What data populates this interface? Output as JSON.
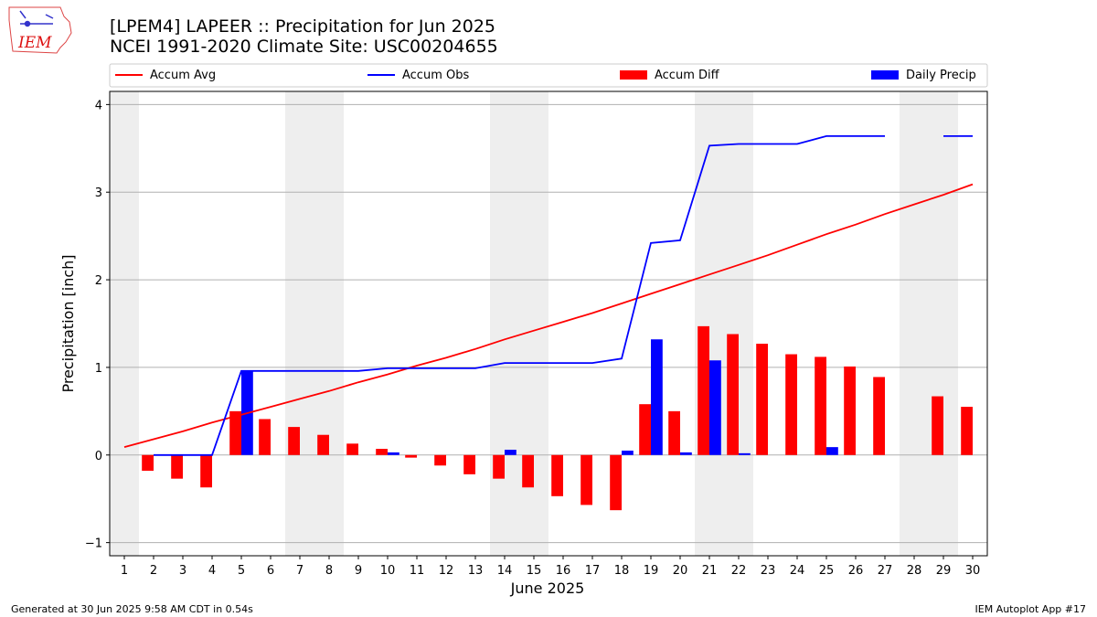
{
  "header": {
    "title_line1": "[LPEM4] LAPEER :: Precipitation for Jun 2025",
    "title_line2": "NCEI 1991-2020 Climate Site: USC00204655"
  },
  "logo": {
    "text": "IEM",
    "icon": "iowa-state-outline-icon"
  },
  "footer": {
    "generated": "Generated at 30 Jun 2025 9:58 AM CDT in 0.54s",
    "app": "IEM Autoplot App #17"
  },
  "chart_data": {
    "type": "bar",
    "title": "[LPEM4] LAPEER :: Precipitation for Jun 2025",
    "subtitle": "NCEI 1991-2020 Climate Site: USC00204655",
    "xlabel": "June 2025",
    "ylabel": "Precipitation [inch]",
    "ylim": [
      -1.15,
      4.15
    ],
    "yticks": [
      -1,
      0,
      1,
      2,
      3,
      4
    ],
    "xlim": [
      0.5,
      30.5
    ],
    "x": [
      1,
      2,
      3,
      4,
      5,
      6,
      7,
      8,
      9,
      10,
      11,
      12,
      13,
      14,
      15,
      16,
      17,
      18,
      19,
      20,
      21,
      22,
      23,
      24,
      25,
      26,
      27,
      28,
      29,
      30
    ],
    "grid": "horizontal",
    "legend_placement": "top",
    "weekend_shading_days": [
      1,
      7,
      8,
      14,
      15,
      21,
      22,
      28,
      29
    ],
    "colors": {
      "accum_avg": "#ff0000",
      "accum_obs": "#0000ff",
      "accum_diff": "#ff0000",
      "daily_precip": "#0000ff",
      "weekend": "#eeeeee",
      "grid": "#b0b0b0"
    },
    "series": [
      {
        "name": "Accum Avg",
        "kind": "line",
        "values": [
          0.09,
          0.18,
          0.27,
          0.37,
          0.46,
          0.55,
          0.64,
          0.73,
          0.83,
          0.92,
          1.02,
          1.11,
          1.21,
          1.32,
          1.42,
          1.52,
          1.62,
          1.73,
          1.84,
          1.95,
          2.06,
          2.17,
          2.28,
          2.4,
          2.52,
          2.63,
          2.75,
          2.86,
          2.97,
          3.09
        ]
      },
      {
        "name": "Accum Obs",
        "kind": "line",
        "values": [
          null,
          0.0,
          0.0,
          0.0,
          0.96,
          0.96,
          0.96,
          0.96,
          0.96,
          0.99,
          0.99,
          0.99,
          0.99,
          1.05,
          1.05,
          1.05,
          1.05,
          1.1,
          2.42,
          2.45,
          3.53,
          3.55,
          3.55,
          3.55,
          3.64,
          3.64,
          3.64,
          null,
          3.64,
          3.64
        ]
      },
      {
        "name": "Accum Diff",
        "kind": "bar",
        "values": [
          null,
          -0.18,
          -0.27,
          -0.37,
          0.5,
          0.41,
          0.32,
          0.23,
          0.13,
          0.07,
          -0.03,
          -0.12,
          -0.22,
          -0.27,
          -0.37,
          -0.47,
          -0.57,
          -0.63,
          0.58,
          0.5,
          1.47,
          1.38,
          1.27,
          1.15,
          1.12,
          1.01,
          0.89,
          null,
          0.67,
          0.55
        ]
      },
      {
        "name": "Daily Precip",
        "kind": "bar",
        "values": [
          null,
          0.0,
          0.0,
          0.0,
          0.96,
          0.0,
          0.0,
          0.0,
          0.0,
          0.03,
          0.0,
          0.0,
          0.0,
          0.06,
          0.0,
          0.0,
          0.0,
          0.05,
          1.32,
          0.03,
          1.08,
          0.02,
          0.0,
          0.0,
          0.09,
          0.0,
          0.0,
          null,
          0.0,
          0.0
        ]
      }
    ]
  }
}
